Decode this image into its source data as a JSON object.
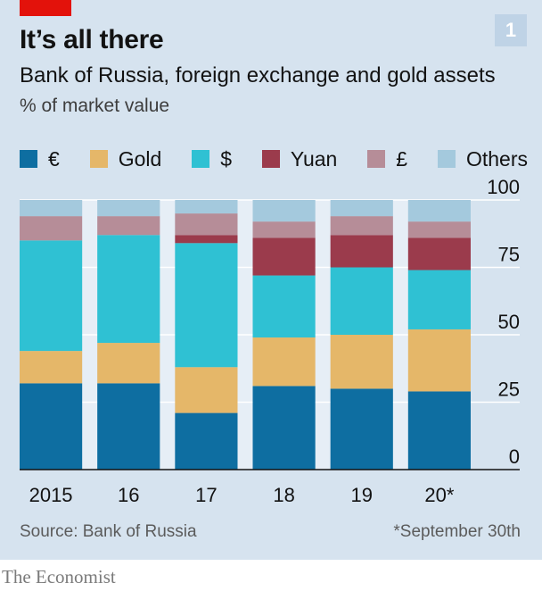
{
  "title": "It’s all there",
  "chart_number": "1",
  "subtitle": "Bank of Russia, foreign exchange and gold assets",
  "units": "% of market value",
  "source": "Source: Bank of Russia",
  "footnote": "*September 30th",
  "brand": "The Economist",
  "colors": {
    "panel_background": "#d6e3ef",
    "accent_red": "#e3120b",
    "gap_column": "#e6eef6"
  },
  "chart_data": {
    "type": "bar",
    "stacked": true,
    "categories": [
      "2015",
      "16",
      "17",
      "18",
      "19",
      "20*"
    ],
    "ylim": [
      0,
      100
    ],
    "yticks": [
      0,
      25,
      50,
      75,
      100
    ],
    "y_axis_position": "right",
    "grid": true,
    "legend_position": "top",
    "series": [
      {
        "name": "€",
        "color": "#0e6ea1",
        "values": [
          32,
          32,
          21,
          31,
          30,
          29
        ]
      },
      {
        "name": "Gold",
        "color": "#e5b769",
        "values": [
          12,
          15,
          17,
          18,
          20,
          23
        ]
      },
      {
        "name": "$",
        "color": "#2fc1d3",
        "values": [
          41,
          40,
          46,
          23,
          25,
          22
        ]
      },
      {
        "name": "Yuan",
        "color": "#9b3b4c",
        "values": [
          0,
          0,
          3,
          14,
          12,
          12
        ]
      },
      {
        "name": "£",
        "color": "#b68d98",
        "values": [
          9,
          7,
          8,
          6,
          7,
          6
        ]
      },
      {
        "name": "Others",
        "color": "#a4c9dd",
        "values": [
          6,
          6,
          5,
          8,
          6,
          8
        ]
      }
    ]
  }
}
